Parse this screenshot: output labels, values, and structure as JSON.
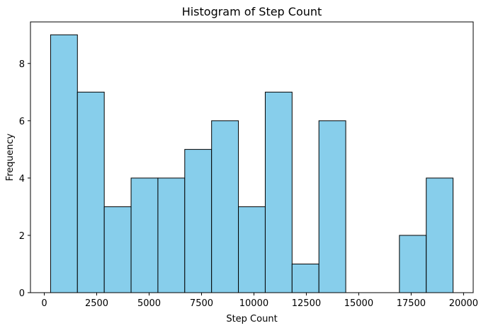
{
  "chart_data": {
    "type": "bar",
    "title": "Histogram of Step Count",
    "xlabel": "Step Count",
    "ylabel": "Frequency",
    "bar_color": "#87ceeb",
    "edge_color": "#000000",
    "bins": [
      {
        "start": 300,
        "end": 1580,
        "count": 9
      },
      {
        "start": 1580,
        "end": 2860,
        "count": 7
      },
      {
        "start": 2860,
        "end": 4140,
        "count": 3
      },
      {
        "start": 4140,
        "end": 5420,
        "count": 4
      },
      {
        "start": 5420,
        "end": 6700,
        "count": 4
      },
      {
        "start": 6700,
        "end": 7980,
        "count": 5
      },
      {
        "start": 7980,
        "end": 9260,
        "count": 6
      },
      {
        "start": 9260,
        "end": 10540,
        "count": 3
      },
      {
        "start": 10540,
        "end": 11820,
        "count": 7
      },
      {
        "start": 11820,
        "end": 13100,
        "count": 1
      },
      {
        "start": 13100,
        "end": 14380,
        "count": 6
      },
      {
        "start": 14380,
        "end": 15660,
        "count": 0
      },
      {
        "start": 15660,
        "end": 16940,
        "count": 0
      },
      {
        "start": 16940,
        "end": 18220,
        "count": 2
      },
      {
        "start": 18220,
        "end": 19500,
        "count": 4
      }
    ],
    "xlim": [
      -660,
      20460
    ],
    "ylim": [
      0,
      9.45
    ],
    "xticks": [
      0,
      2500,
      5000,
      7500,
      10000,
      12500,
      15000,
      17500,
      20000
    ],
    "xtick_labels": [
      "0",
      "2500",
      "5000",
      "7500",
      "10000",
      "12500",
      "15000",
      "17500",
      "20000"
    ],
    "yticks": [
      0,
      2,
      4,
      6,
      8
    ],
    "ytick_labels": [
      "0",
      "2",
      "4",
      "6",
      "8"
    ],
    "grid": false,
    "legend": "none"
  }
}
